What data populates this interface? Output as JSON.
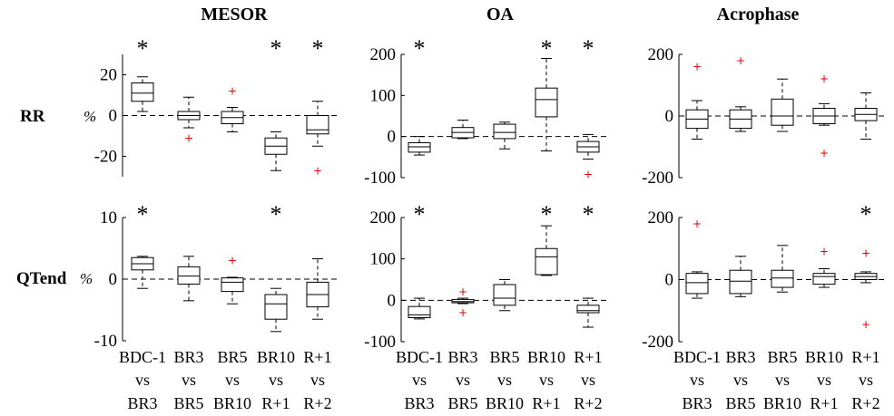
{
  "figure": {
    "column_titles": [
      "MESOR",
      "OA",
      "Acrophase"
    ],
    "row_labels": [
      "RR",
      "QTend"
    ],
    "unit": "%",
    "comparison_labels": [
      [
        "BDC-1",
        "vs",
        "BR3"
      ],
      [
        "BR3",
        "vs",
        "BR5"
      ],
      [
        "BR5",
        "vs",
        "BR10"
      ],
      [
        "BR10",
        "vs",
        "R+1"
      ],
      [
        "R+1",
        "vs",
        "R+2"
      ]
    ]
  },
  "chart_data": [
    {
      "type": "box",
      "title": "MESOR",
      "row": "RR",
      "ylim": [
        -30,
        30
      ],
      "yticks": [
        -20,
        0,
        20
      ],
      "ytick_labels": [
        "-20",
        "0",
        "20"
      ],
      "categories": [
        "BDC-1 vs BR3",
        "BR3 vs BR5",
        "BR5 vs BR10",
        "BR10 vs R+1",
        "R+1 vs R+2"
      ],
      "zero_line": "dashed",
      "boxes": [
        {
          "whisker_low": 2,
          "q1": 7,
          "median": 11,
          "q3": 16,
          "whisker_high": 19,
          "outliers": [],
          "star": true
        },
        {
          "whisker_low": -6,
          "q1": -2,
          "median": 0,
          "q3": 2,
          "whisker_high": 9,
          "outliers": [
            -11
          ],
          "star": false
        },
        {
          "whisker_low": -8,
          "q1": -4,
          "median": -1,
          "q3": 2,
          "whisker_high": 4,
          "outliers": [
            12
          ],
          "star": false
        },
        {
          "whisker_low": -27,
          "q1": -19,
          "median": -15,
          "q3": -11,
          "whisker_high": -8,
          "outliers": [],
          "star": true
        },
        {
          "whisker_low": -15,
          "q1": -9,
          "median": -7,
          "q3": 0,
          "whisker_high": 7,
          "outliers": [
            -27
          ],
          "star": true
        }
      ]
    },
    {
      "type": "box",
      "title": "OA",
      "row": "RR",
      "ylim": [
        -100,
        200
      ],
      "yticks": [
        -100,
        0,
        100,
        200
      ],
      "ytick_labels": [
        "-100",
        "0",
        "100",
        "200"
      ],
      "categories": [
        "BDC-1 vs BR3",
        "BR3 vs BR5",
        "BR5 vs BR10",
        "BR10 vs R+1",
        "R+1 vs R+2"
      ],
      "zero_line": "dashed",
      "boxes": [
        {
          "whisker_low": -45,
          "q1": -38,
          "median": -25,
          "q3": -15,
          "whisker_high": 0,
          "outliers": [],
          "star": true
        },
        {
          "whisker_low": -5,
          "q1": -3,
          "median": 10,
          "q3": 22,
          "whisker_high": 40,
          "outliers": [],
          "star": false
        },
        {
          "whisker_low": -30,
          "q1": -5,
          "median": 10,
          "q3": 30,
          "whisker_high": 35,
          "outliers": [],
          "star": false
        },
        {
          "whisker_low": -35,
          "q1": 48,
          "median": 90,
          "q3": 118,
          "whisker_high": 190,
          "outliers": [],
          "star": true
        },
        {
          "whisker_low": -55,
          "q1": -38,
          "median": -25,
          "q3": -12,
          "whisker_high": 5,
          "outliers": [
            -92
          ],
          "star": true
        }
      ]
    },
    {
      "type": "box",
      "title": "Acrophase",
      "row": "RR",
      "ylim": [
        -200,
        200
      ],
      "yticks": [
        -200,
        0,
        200
      ],
      "ytick_labels": [
        "-200",
        "0",
        "200"
      ],
      "categories": [
        "BDC-1 vs BR3",
        "BR3 vs BR5",
        "BR5 vs BR10",
        "BR10 vs R+1",
        "R+1 vs R+2"
      ],
      "zero_line": "dashed",
      "boxes": [
        {
          "whisker_low": -75,
          "q1": -40,
          "median": -10,
          "q3": 20,
          "whisker_high": 50,
          "outliers": [
            160
          ],
          "star": false
        },
        {
          "whisker_low": -50,
          "q1": -40,
          "median": -10,
          "q3": 20,
          "whisker_high": 30,
          "outliers": [
            180
          ],
          "star": false
        },
        {
          "whisker_low": -50,
          "q1": -30,
          "median": 0,
          "q3": 55,
          "whisker_high": 120,
          "outliers": [],
          "star": false
        },
        {
          "whisker_low": -30,
          "q1": -25,
          "median": 0,
          "q3": 25,
          "whisker_high": 40,
          "outliers": [
            120,
            -120
          ],
          "star": false
        },
        {
          "whisker_low": -75,
          "q1": -15,
          "median": 5,
          "q3": 25,
          "whisker_high": 75,
          "outliers": [],
          "star": false
        }
      ]
    },
    {
      "type": "box",
      "title": "MESOR",
      "row": "QTend",
      "ylim": [
        -10,
        10
      ],
      "yticks": [
        -10,
        0,
        10
      ],
      "ytick_labels": [
        "-10",
        "0",
        "10"
      ],
      "categories": [
        "BDC-1 vs BR3",
        "BR3 vs BR5",
        "BR5 vs BR10",
        "BR10 vs R+1",
        "R+1 vs R+2"
      ],
      "zero_line": "dashed",
      "boxes": [
        {
          "whisker_low": -1.5,
          "q1": 1.5,
          "median": 2.5,
          "q3": 3.5,
          "whisker_high": 3.7,
          "outliers": [],
          "star": true
        },
        {
          "whisker_low": -3.5,
          "q1": -0.8,
          "median": 0.5,
          "q3": 2,
          "whisker_high": 3.7,
          "outliers": [],
          "star": false
        },
        {
          "whisker_low": -4,
          "q1": -2,
          "median": -0.5,
          "q3": 0.2,
          "whisker_high": 0.3,
          "outliers": [
            3
          ],
          "star": false
        },
        {
          "whisker_low": -8.5,
          "q1": -6.5,
          "median": -4,
          "q3": -2.5,
          "whisker_high": -1.5,
          "outliers": [],
          "star": true
        },
        {
          "whisker_low": -6.5,
          "q1": -4.5,
          "median": -2.5,
          "q3": -0.5,
          "whisker_high": 3.3,
          "outliers": [],
          "star": false
        }
      ]
    },
    {
      "type": "box",
      "title": "OA",
      "row": "QTend",
      "ylim": [
        -100,
        200
      ],
      "yticks": [
        -100,
        0,
        100,
        200
      ],
      "ytick_labels": [
        "-100",
        "0",
        "100",
        "200"
      ],
      "categories": [
        "BDC-1 vs BR3",
        "BR3 vs BR5",
        "BR5 vs BR10",
        "BR10 vs R+1",
        "R+1 vs R+2"
      ],
      "zero_line": "dashed",
      "boxes": [
        {
          "whisker_low": -45,
          "q1": -42,
          "median": -35,
          "q3": -15,
          "whisker_high": 5,
          "outliers": [],
          "star": true
        },
        {
          "whisker_low": -8,
          "q1": -6,
          "median": -3,
          "q3": 2,
          "whisker_high": 5,
          "outliers": [
            20,
            -30
          ],
          "star": false
        },
        {
          "whisker_low": -25,
          "q1": -12,
          "median": 5,
          "q3": 38,
          "whisker_high": 50,
          "outliers": [],
          "star": false
        },
        {
          "whisker_low": 60,
          "q1": 62,
          "median": 105,
          "q3": 125,
          "whisker_high": 180,
          "outliers": [],
          "star": true
        },
        {
          "whisker_low": -65,
          "q1": -30,
          "median": -25,
          "q3": -12,
          "whisker_high": 5,
          "outliers": [],
          "star": true
        }
      ]
    },
    {
      "type": "box",
      "title": "Acrophase",
      "row": "QTend",
      "ylim": [
        -200,
        200
      ],
      "yticks": [
        -200,
        0,
        200
      ],
      "ytick_labels": [
        "-200",
        "0",
        "200"
      ],
      "categories": [
        "BDC-1 vs BR3",
        "BR3 vs BR5",
        "BR5 vs BR10",
        "BR10 vs R+1",
        "R+1 vs R+2"
      ],
      "zero_line": "dashed",
      "boxes": [
        {
          "whisker_low": -60,
          "q1": -45,
          "median": -10,
          "q3": 20,
          "whisker_high": 25,
          "outliers": [
            180
          ],
          "star": false
        },
        {
          "whisker_low": -55,
          "q1": -45,
          "median": -5,
          "q3": 30,
          "whisker_high": 75,
          "outliers": [],
          "star": false
        },
        {
          "whisker_low": -40,
          "q1": -25,
          "median": 5,
          "q3": 30,
          "whisker_high": 110,
          "outliers": [],
          "star": false
        },
        {
          "whisker_low": -25,
          "q1": -15,
          "median": 10,
          "q3": 20,
          "whisker_high": 35,
          "outliers": [
            90
          ],
          "star": false
        },
        {
          "whisker_low": -10,
          "q1": 0,
          "median": 10,
          "q3": 20,
          "whisker_high": 25,
          "outliers": [
            85,
            -145
          ],
          "star": true
        }
      ]
    }
  ]
}
